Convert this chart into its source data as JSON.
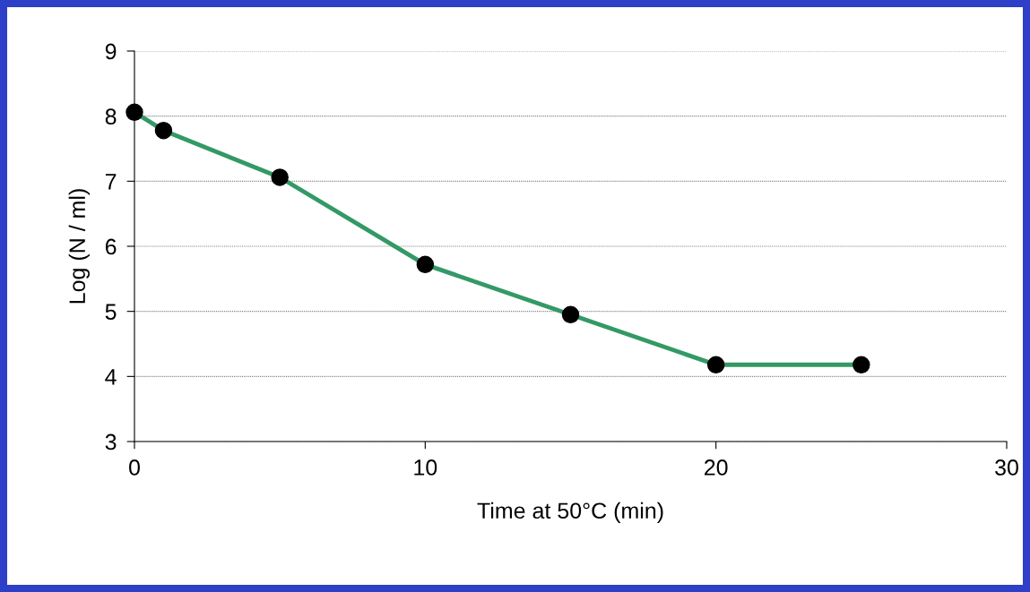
{
  "chart_data": {
    "type": "line",
    "xlabel": "Time at 50°C (min)",
    "ylabel": "Log (N / ml)",
    "x": [
      0,
      1,
      5,
      10,
      15,
      20,
      25
    ],
    "series": [
      {
        "color": "#339966",
        "values": [
          8.06,
          7.78,
          7.06,
          5.72,
          4.95,
          4.18,
          4.18
        ]
      }
    ],
    "marker": "circle",
    "line_style": "solid",
    "xlim": [
      0,
      30
    ],
    "xticks": [
      0,
      10,
      20,
      30
    ],
    "ylim": [
      3,
      9
    ],
    "yticks": [
      3,
      4,
      5,
      6,
      7,
      8,
      9
    ],
    "grid": "y"
  }
}
